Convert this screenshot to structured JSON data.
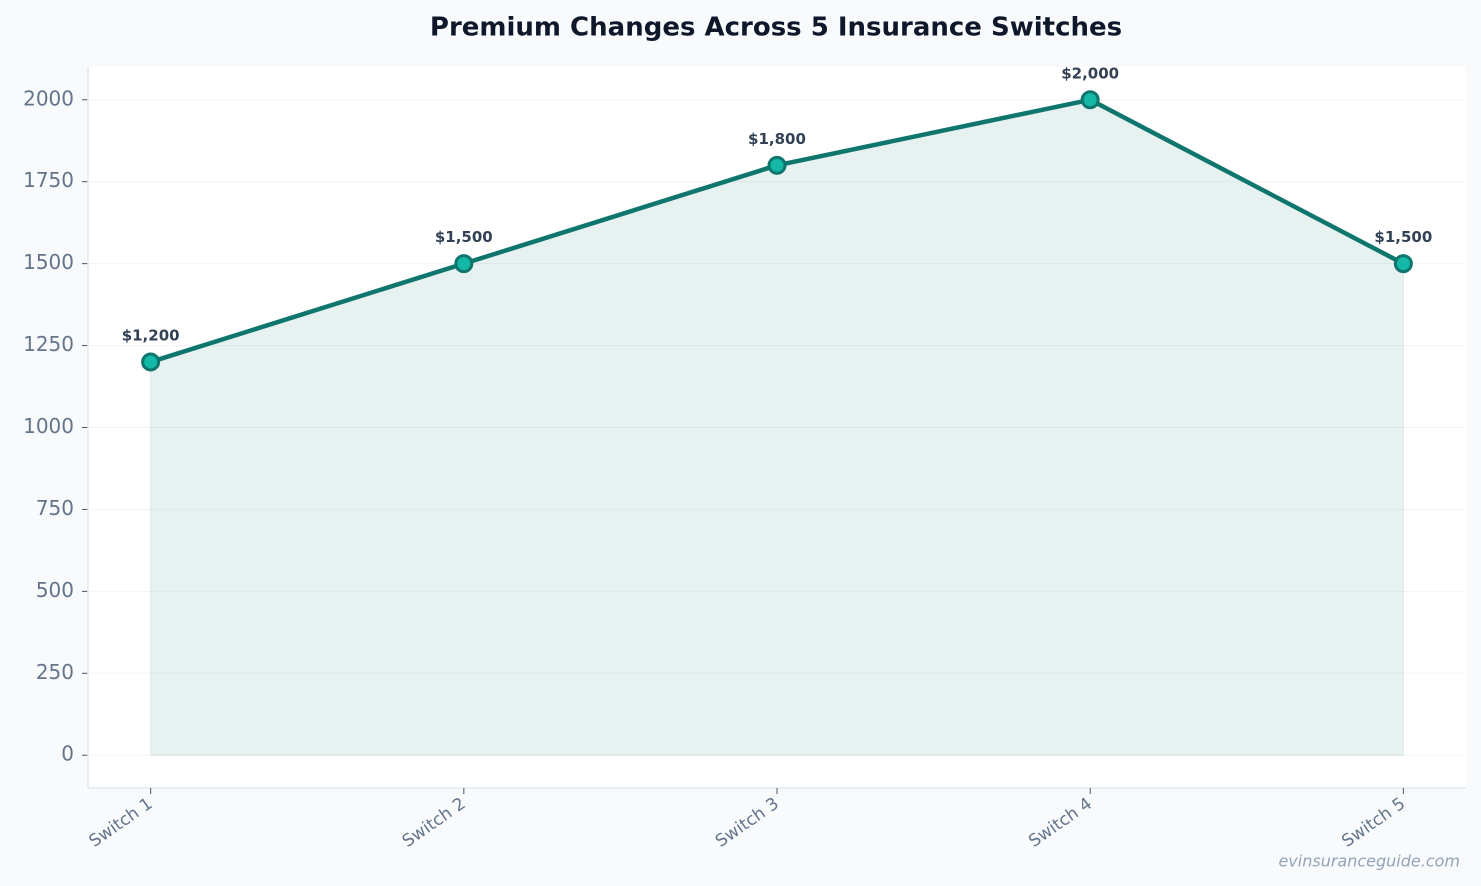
{
  "chart_data": {
    "type": "line",
    "title": "Premium Changes Across 5 Insurance Switches",
    "categories": [
      "Switch 1",
      "Switch 2",
      "Switch 3",
      "Switch 4",
      "Switch 5"
    ],
    "values": [
      1200,
      1500,
      1800,
      2000,
      1500
    ],
    "value_labels": [
      "$1,200",
      "$1,500",
      "$1,800",
      "$2,000",
      "$1,500"
    ],
    "color": "#0f766e",
    "marker_color": "#14b8a6",
    "area_color": "#0f766e",
    "ylim": [
      -100,
      2100
    ],
    "yticks": [
      0,
      250,
      500,
      750,
      1000,
      1250,
      1500,
      1750,
      2000
    ],
    "grid": true,
    "watermark": "evinsuranceguide.com"
  }
}
